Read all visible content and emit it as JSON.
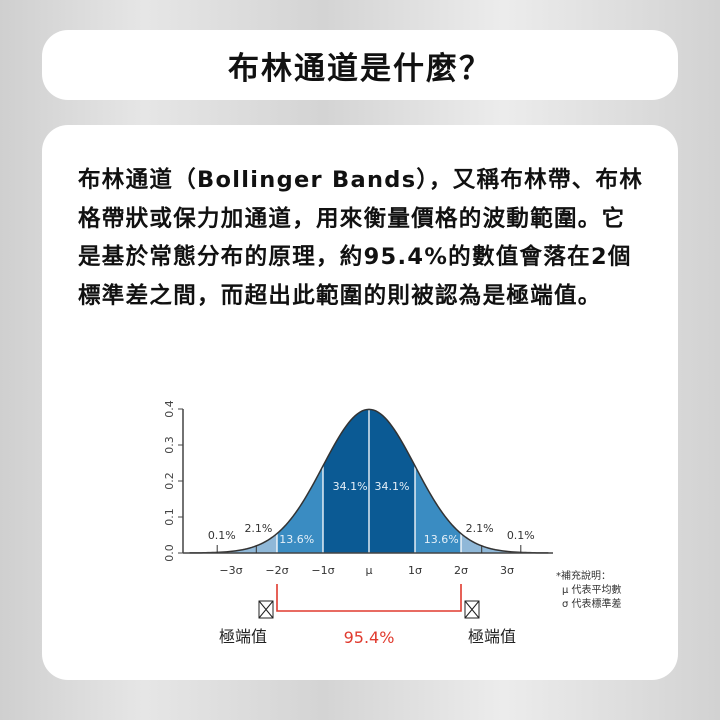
{
  "title": "布林通道是什麼？",
  "paragraph": "布林通道（Bollinger Bands），又稱布林帶、布林格帶狀或保力加通道，用來衡量價格的波動範圍。它是基於常態分布的原理，約95.4%的數值會落在2個標準差之間，而超出此範圍的則被認為是極端值。",
  "chart_data": {
    "type": "area",
    "x_ticks": [
      "−3σ",
      "−2σ",
      "−1σ",
      "μ",
      "1σ",
      "2σ",
      "3σ"
    ],
    "y_ticks": [
      "0.0",
      "0.1",
      "0.2",
      "0.3",
      "0.4"
    ],
    "ylim": [
      0,
      0.4
    ],
    "xlim_sigma": [
      -4,
      4
    ],
    "regions": [
      {
        "from": -3,
        "to": -2,
        "label": "2.1%",
        "color": "#8fb8d8"
      },
      {
        "from": -2,
        "to": -1,
        "label": "13.6%",
        "color": "#3a8cc2"
      },
      {
        "from": -1,
        "to": 0,
        "label": "34.1%",
        "color": "#0b5a94"
      },
      {
        "from": 0,
        "to": 1,
        "label": "34.1%",
        "color": "#0b5a94"
      },
      {
        "from": 1,
        "to": 2,
        "label": "13.6%",
        "color": "#3a8cc2"
      },
      {
        "from": 2,
        "to": 3,
        "label": "2.1%",
        "color": "#8fb8d8"
      }
    ],
    "tail_labels": [
      "0.1%",
      "0.1%"
    ],
    "range_label": "95.4%",
    "range_color": "#e03a2e",
    "extreme_label": "極端值",
    "note": [
      "*補充說明：",
      "μ 代表平均數",
      "σ 代表標準差"
    ]
  }
}
